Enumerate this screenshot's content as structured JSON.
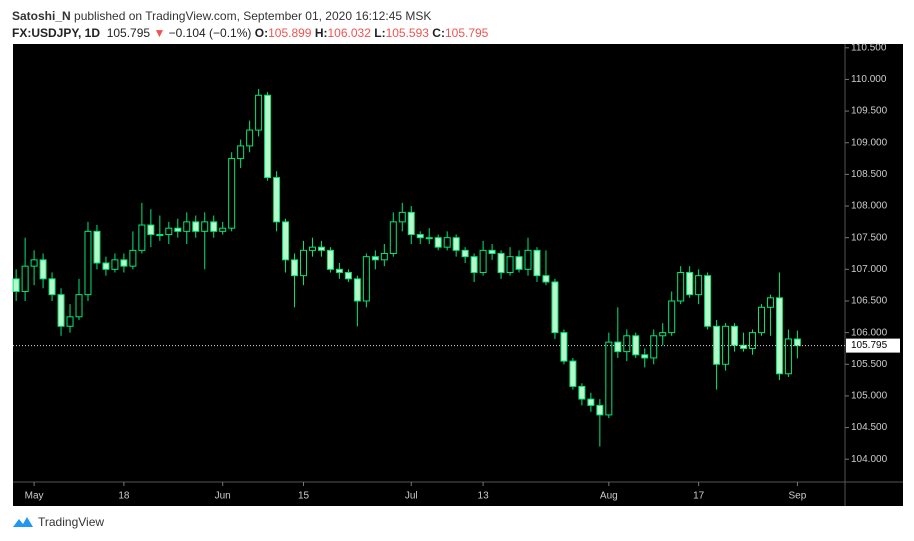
{
  "header": {
    "publisher": "Satoshi_N",
    "published": "published on TradingView.com, September 01, 2020 16:12:45 MSK",
    "symbol": "FX:USDJPY, 1D",
    "last": "105.795",
    "arrow": "▼",
    "change": "−0.104 (−0.1%)",
    "o_label": "O:",
    "o_value": "105.899",
    "h_label": "H:",
    "h_value": "106.032",
    "l_label": "L:",
    "l_value": "105.593",
    "c_label": "C:",
    "c_value": "105.795"
  },
  "footer": {
    "brand": "TradingView"
  },
  "chart_data": {
    "type": "candlestick",
    "up_color": "#00e676",
    "down_color": "#b9f6ca",
    "background": "#000000",
    "x": [
      0,
      1,
      2,
      3,
      4,
      5,
      6,
      7,
      8,
      9,
      10,
      11,
      12,
      13,
      14,
      15,
      16,
      17,
      18,
      19,
      20,
      21,
      22,
      23,
      24,
      25,
      26,
      27,
      28,
      29,
      30,
      31,
      32,
      33,
      34,
      35,
      36,
      37,
      38,
      39,
      40,
      41,
      42,
      43,
      44,
      45,
      46,
      47,
      48,
      49,
      50,
      51,
      52,
      53,
      54,
      55,
      56,
      57,
      58,
      59,
      60,
      61,
      62,
      63,
      64,
      65,
      66,
      67,
      68,
      69,
      70,
      71,
      72,
      73,
      74,
      75,
      76,
      77,
      78,
      79,
      80,
      81,
      82,
      83,
      84,
      85,
      86,
      87
    ],
    "open": [
      106.85,
      106.65,
      107.05,
      107.15,
      106.85,
      106.6,
      106.1,
      106.25,
      106.6,
      107.6,
      107.1,
      107.0,
      107.15,
      107.05,
      107.3,
      107.7,
      107.55,
      107.55,
      107.65,
      107.6,
      107.75,
      107.6,
      107.75,
      107.6,
      107.65,
      108.75,
      108.95,
      109.2,
      109.75,
      108.45,
      107.75,
      107.15,
      106.9,
      107.3,
      107.35,
      107.3,
      107.0,
      106.95,
      106.85,
      106.5,
      107.2,
      107.15,
      107.25,
      107.75,
      107.9,
      107.55,
      107.5,
      107.5,
      107.35,
      107.5,
      107.3,
      107.2,
      106.95,
      107.3,
      107.25,
      106.95,
      107.2,
      107.0,
      107.3,
      106.9,
      106.8,
      106.0,
      105.55,
      105.15,
      104.95,
      104.85,
      104.7,
      105.85,
      105.7,
      105.95,
      105.65,
      105.6,
      105.95,
      106.0,
      106.5,
      106.95,
      106.6,
      106.9,
      106.1,
      105.5,
      106.1,
      105.8,
      105.75,
      106.0,
      106.4,
      106.55,
      105.35,
      105.899
    ],
    "high": [
      107.0,
      107.5,
      107.3,
      107.25,
      106.95,
      106.7,
      106.45,
      106.85,
      107.75,
      107.7,
      107.2,
      107.25,
      107.25,
      107.6,
      108.05,
      107.95,
      107.85,
      107.75,
      107.8,
      107.9,
      107.85,
      107.9,
      107.85,
      107.75,
      108.85,
      109.05,
      109.35,
      109.85,
      109.8,
      108.55,
      107.8,
      107.25,
      107.45,
      107.5,
      107.45,
      107.35,
      107.1,
      107.0,
      106.9,
      107.25,
      107.3,
      107.4,
      107.9,
      108.05,
      108.0,
      107.6,
      107.65,
      107.55,
      107.6,
      107.55,
      107.35,
      107.25,
      107.45,
      107.4,
      107.3,
      107.35,
      107.3,
      107.5,
      107.35,
      107.3,
      106.85,
      106.05,
      105.6,
      105.2,
      105.05,
      104.95,
      106.0,
      106.4,
      106.05,
      106.0,
      105.75,
      106.05,
      106.15,
      106.65,
      107.05,
      107.05,
      107.0,
      106.95,
      106.2,
      106.15,
      106.15,
      106.0,
      106.05,
      106.45,
      106.6,
      106.95,
      106.05,
      106.032
    ],
    "low": [
      106.5,
      106.5,
      106.75,
      106.7,
      106.5,
      105.95,
      106.0,
      106.2,
      106.5,
      107.0,
      106.9,
      106.95,
      106.95,
      107.0,
      107.25,
      107.35,
      107.45,
      107.4,
      107.5,
      107.4,
      107.5,
      107.0,
      107.5,
      107.55,
      107.6,
      108.6,
      108.85,
      109.1,
      108.4,
      107.6,
      106.95,
      106.4,
      106.75,
      107.2,
      107.2,
      106.95,
      106.85,
      106.8,
      106.1,
      106.4,
      107.0,
      107.05,
      107.2,
      107.6,
      107.4,
      107.4,
      107.4,
      107.3,
      107.3,
      107.2,
      107.1,
      106.8,
      106.9,
      107.15,
      106.85,
      106.9,
      106.95,
      106.9,
      106.8,
      106.75,
      105.9,
      105.5,
      105.1,
      104.85,
      104.75,
      104.2,
      104.65,
      105.6,
      105.55,
      105.6,
      105.45,
      105.5,
      105.8,
      105.95,
      106.45,
      106.55,
      106.45,
      106.05,
      105.1,
      105.4,
      105.7,
      105.7,
      105.65,
      105.95,
      105.95,
      105.25,
      105.3,
      105.593
    ],
    "close": [
      106.65,
      107.05,
      107.15,
      106.85,
      106.6,
      106.1,
      106.25,
      106.6,
      107.6,
      107.1,
      107.0,
      107.15,
      107.05,
      107.3,
      107.7,
      107.55,
      107.55,
      107.65,
      107.6,
      107.75,
      107.6,
      107.75,
      107.6,
      107.65,
      108.75,
      108.95,
      109.2,
      109.75,
      108.45,
      107.75,
      107.15,
      106.9,
      107.3,
      107.35,
      107.3,
      107.0,
      106.95,
      106.85,
      106.5,
      107.2,
      107.15,
      107.25,
      107.75,
      107.9,
      107.55,
      107.5,
      107.5,
      107.35,
      107.5,
      107.3,
      107.2,
      106.95,
      107.3,
      107.25,
      106.95,
      107.2,
      107.0,
      107.3,
      106.9,
      106.8,
      106.0,
      105.55,
      105.15,
      104.95,
      104.85,
      104.7,
      105.85,
      105.7,
      105.95,
      105.65,
      105.6,
      105.95,
      106.0,
      106.5,
      106.95,
      106.6,
      106.9,
      106.1,
      105.5,
      106.1,
      105.8,
      105.75,
      106.0,
      106.4,
      106.55,
      105.35,
      105.9,
      105.795
    ],
    "last_value": 105.795,
    "xlim": [
      -0.35,
      92.3
    ],
    "xticks": [
      {
        "value": 2,
        "label": "May"
      },
      {
        "value": 12,
        "label": "18"
      },
      {
        "value": 23,
        "label": "Jun"
      },
      {
        "value": 32,
        "label": "15"
      },
      {
        "value": 44,
        "label": "Jul"
      },
      {
        "value": 52,
        "label": "13"
      },
      {
        "value": 66,
        "label": "Aug"
      },
      {
        "value": 76,
        "label": "17"
      },
      {
        "value": 87,
        "label": "Sep"
      }
    ],
    "ylim": [
      103.64,
      110.56
    ],
    "yticks": [
      {
        "value": 104,
        "label": "104.000"
      },
      {
        "value": 104.5,
        "label": "104.500"
      },
      {
        "value": 105,
        "label": "105.000"
      },
      {
        "value": 105.5,
        "label": "105.500"
      },
      {
        "value": 106,
        "label": "106.000"
      },
      {
        "value": 106.5,
        "label": "106.500"
      },
      {
        "value": 107,
        "label": "107.000"
      },
      {
        "value": 107.5,
        "label": "107.500"
      },
      {
        "value": 108,
        "label": "108.000"
      },
      {
        "value": 108.5,
        "label": "108.500"
      },
      {
        "value": 109,
        "label": "109.000"
      },
      {
        "value": 109.5,
        "label": "109.500"
      },
      {
        "value": 110,
        "label": "110.000"
      },
      {
        "value": 110.5,
        "label": "110.500"
      }
    ]
  }
}
